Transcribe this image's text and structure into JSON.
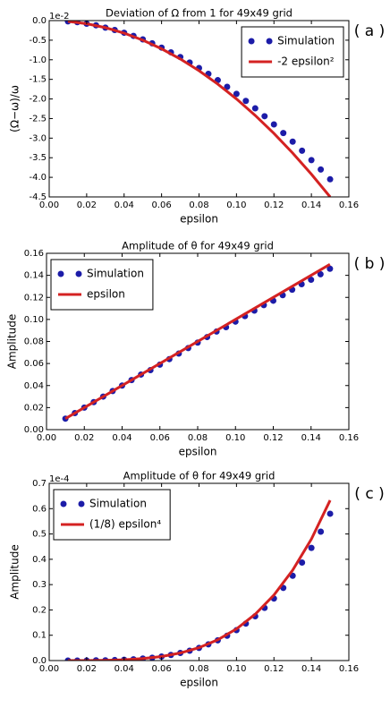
{
  "chart_data": [
    {
      "type": "scatter",
      "title": "Deviation of Ω from 1 for 49x49 grid",
      "xlabel": "epsilon",
      "ylabel": "(Ω−ω)/ω",
      "y_offset_label": "1e-2",
      "panel_label": "( a )",
      "legend": "upper right",
      "xlim": [
        0,
        0.16
      ],
      "xticks": [
        {
          "value": 0,
          "label": "0.00"
        },
        {
          "value": 0.02,
          "label": "0.02"
        },
        {
          "value": 0.04,
          "label": "0.04"
        },
        {
          "value": 0.06,
          "label": "0.06"
        },
        {
          "value": 0.08,
          "label": "0.08"
        },
        {
          "value": 0.1,
          "label": "0.10"
        },
        {
          "value": 0.12,
          "label": "0.12"
        },
        {
          "value": 0.14,
          "label": "0.14"
        },
        {
          "value": 0.16,
          "label": "0.16"
        }
      ],
      "ylim": [
        -4.5,
        0
      ],
      "yticks": [
        {
          "value": 0,
          "label": "0.0"
        },
        -0.5,
        {
          "value": -1,
          "label": "-1.0"
        },
        -1.5,
        {
          "value": -2,
          "label": "-2.0"
        },
        -2.5,
        {
          "value": -3,
          "label": "-3.0"
        },
        -3.5,
        {
          "value": -4,
          "label": "-4.0"
        },
        -4.5
      ],
      "series": [
        {
          "name": "Simulation",
          "style": "markers",
          "color": "#1c1ca8",
          "x": [
            0.01,
            0.015,
            0.02,
            0.025,
            0.03,
            0.035,
            0.04,
            0.045,
            0.05,
            0.055,
            0.06,
            0.065,
            0.07,
            0.075,
            0.08,
            0.085,
            0.09,
            0.095,
            0.1,
            0.105,
            0.11,
            0.115,
            0.12,
            0.125,
            0.13,
            0.135,
            0.14,
            0.145,
            0.15
          ],
          "values": [
            -0.02,
            -0.04,
            -0.08,
            -0.12,
            -0.18,
            -0.24,
            -0.31,
            -0.39,
            -0.48,
            -0.58,
            -0.69,
            -0.81,
            -0.93,
            -1.07,
            -1.21,
            -1.36,
            -1.52,
            -1.69,
            -1.87,
            -2.05,
            -2.24,
            -2.44,
            -2.65,
            -2.87,
            -3.09,
            -3.32,
            -3.56,
            -3.8,
            -4.05
          ]
        },
        {
          "name": "-2 epsilon²",
          "style": "line",
          "color": "#d42222",
          "x": [
            0.01,
            0.02,
            0.03,
            0.04,
            0.05,
            0.06,
            0.07,
            0.08,
            0.09,
            0.1,
            0.11,
            0.12,
            0.13,
            0.14,
            0.15
          ],
          "values": [
            -0.02,
            -0.08,
            -0.18,
            -0.32,
            -0.5,
            -0.72,
            -0.98,
            -1.28,
            -1.62,
            -2,
            -2.42,
            -2.88,
            -3.38,
            -3.92,
            -4.5
          ]
        }
      ]
    },
    {
      "type": "scatter",
      "title": "Amplitude of θ for 49x49 grid",
      "xlabel": "epsilon",
      "ylabel": "Amplitude",
      "panel_label": "( b )",
      "legend": "upper left",
      "xlim": [
        0,
        0.16
      ],
      "xticks": [
        {
          "value": 0,
          "label": "0.00"
        },
        {
          "value": 0.02,
          "label": "0.02"
        },
        {
          "value": 0.04,
          "label": "0.04"
        },
        {
          "value": 0.06,
          "label": "0.06"
        },
        {
          "value": 0.08,
          "label": "0.08"
        },
        {
          "value": 0.1,
          "label": "0.10"
        },
        {
          "value": 0.12,
          "label": "0.12"
        },
        {
          "value": 0.14,
          "label": "0.14"
        },
        {
          "value": 0.16,
          "label": "0.16"
        }
      ],
      "ylim": [
        0,
        0.16
      ],
      "yticks": [
        {
          "value": 0,
          "label": "0.00"
        },
        {
          "value": 0.02,
          "label": "0.02"
        },
        {
          "value": 0.04,
          "label": "0.04"
        },
        {
          "value": 0.06,
          "label": "0.06"
        },
        {
          "value": 0.08,
          "label": "0.08"
        },
        {
          "value": 0.1,
          "label": "0.10"
        },
        {
          "value": 0.12,
          "label": "0.12"
        },
        {
          "value": 0.14,
          "label": "0.14"
        },
        {
          "value": 0.16,
          "label": "0.16"
        }
      ],
      "series": [
        {
          "name": "Simulation",
          "style": "markers",
          "color": "#1c1ca8",
          "x": [
            0.01,
            0.015,
            0.02,
            0.025,
            0.03,
            0.035,
            0.04,
            0.045,
            0.05,
            0.055,
            0.06,
            0.065,
            0.07,
            0.075,
            0.08,
            0.085,
            0.09,
            0.095,
            0.1,
            0.105,
            0.11,
            0.115,
            0.12,
            0.125,
            0.13,
            0.135,
            0.14,
            0.145,
            0.15
          ],
          "values": [
            0.01,
            0.015,
            0.02,
            0.025,
            0.03,
            0.035,
            0.04,
            0.045,
            0.05,
            0.054,
            0.059,
            0.064,
            0.069,
            0.074,
            0.079,
            0.084,
            0.089,
            0.093,
            0.098,
            0.103,
            0.108,
            0.113,
            0.117,
            0.122,
            0.127,
            0.132,
            0.136,
            0.141,
            0.146
          ]
        },
        {
          "name": "epsilon",
          "style": "line",
          "color": "#d42222",
          "x": [
            0.01,
            0.15
          ],
          "values": [
            0.01,
            0.15
          ]
        }
      ]
    },
    {
      "type": "scatter",
      "title": "Amplitude of θ for 49x49 grid",
      "xlabel": "epsilon",
      "ylabel": "Amplitude",
      "y_offset_label": "1e-4",
      "panel_label": "( c )",
      "legend": "upper left",
      "xlim": [
        0,
        0.16
      ],
      "xticks": [
        {
          "value": 0,
          "label": "0.00"
        },
        {
          "value": 0.02,
          "label": "0.02"
        },
        {
          "value": 0.04,
          "label": "0.04"
        },
        {
          "value": 0.06,
          "label": "0.06"
        },
        {
          "value": 0.08,
          "label": "0.08"
        },
        {
          "value": 0.1,
          "label": "0.10"
        },
        {
          "value": 0.12,
          "label": "0.12"
        },
        {
          "value": 0.14,
          "label": "0.14"
        },
        {
          "value": 0.16,
          "label": "0.16"
        }
      ],
      "ylim": [
        0,
        0.7
      ],
      "yticks": [
        {
          "value": 0,
          "label": "0.0"
        },
        0.1,
        0.2,
        0.3,
        0.4,
        0.5,
        0.6,
        0.7
      ],
      "series": [
        {
          "name": "Simulation",
          "style": "markers",
          "color": "#1c1ca8",
          "x": [
            0.01,
            0.015,
            0.02,
            0.025,
            0.03,
            0.035,
            0.04,
            0.045,
            0.05,
            0.055,
            0.06,
            0.065,
            0.07,
            0.075,
            0.08,
            0.085,
            0.09,
            0.095,
            0.1,
            0.105,
            0.11,
            0.115,
            0.12,
            0.125,
            0.13,
            0.135,
            0.14,
            0.145,
            0.15
          ],
          "values": [
            0,
            0,
            0,
            0.001,
            0.001,
            0.002,
            0.003,
            0.005,
            0.008,
            0.011,
            0.016,
            0.022,
            0.03,
            0.039,
            0.05,
            0.064,
            0.08,
            0.098,
            0.12,
            0.146,
            0.175,
            0.208,
            0.245,
            0.287,
            0.335,
            0.387,
            0.445,
            0.509,
            0.58
          ]
        },
        {
          "name": "(1/8) epsilon⁴",
          "style": "line",
          "color": "#d42222",
          "x": [
            0.01,
            0.02,
            0.03,
            0.04,
            0.05,
            0.06,
            0.07,
            0.08,
            0.09,
            0.1,
            0.11,
            0.12,
            0.13,
            0.14,
            0.15
          ],
          "values": [
            0,
            0,
            0.001,
            0.003,
            0.008,
            0.016,
            0.03,
            0.051,
            0.082,
            0.125,
            0.183,
            0.259,
            0.357,
            0.48,
            0.633
          ]
        }
      ]
    }
  ]
}
